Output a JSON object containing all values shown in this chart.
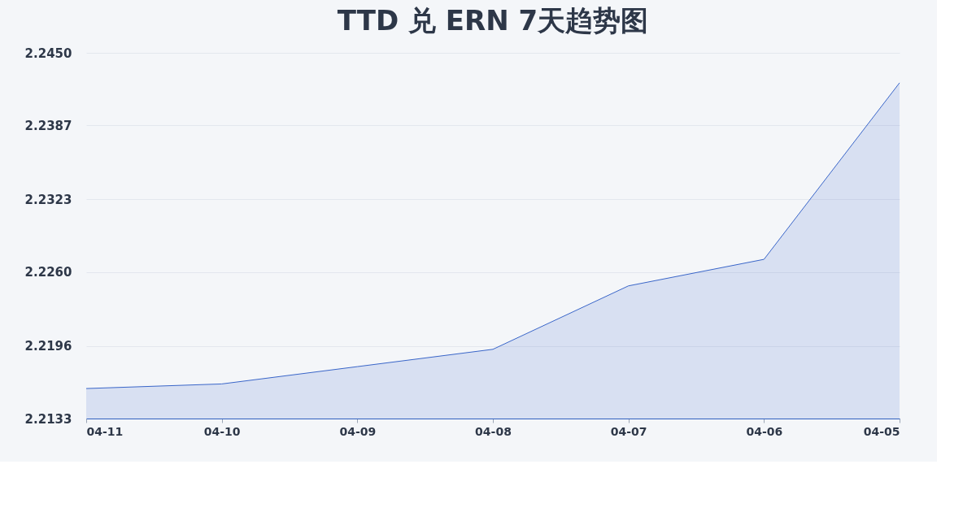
{
  "chart_data": {
    "type": "area",
    "title": "TTD 兑 ERN 7天趋势图",
    "categories": [
      "04-11",
      "04-10",
      "04-09",
      "04-08",
      "04-07",
      "04-06",
      "04-05"
    ],
    "series": [
      {
        "color": "#3a66c9",
        "values": [
          2.2159,
          2.2163,
          2.2178,
          2.2193,
          2.2248,
          2.2271,
          2.2424
        ]
      }
    ],
    "ylim": [
      2.2133,
      2.245
    ],
    "yticks": [
      {
        "value": 2.2133,
        "label": "2.2133"
      },
      {
        "value": 2.2196,
        "label": "2.2196"
      },
      {
        "value": 2.226,
        "label": "2.2260"
      },
      {
        "value": 2.2323,
        "label": "2.2323"
      },
      {
        "value": 2.2387,
        "label": "2.2387"
      },
      {
        "value": 2.245,
        "label": "2.2450"
      }
    ],
    "grid": "y"
  }
}
